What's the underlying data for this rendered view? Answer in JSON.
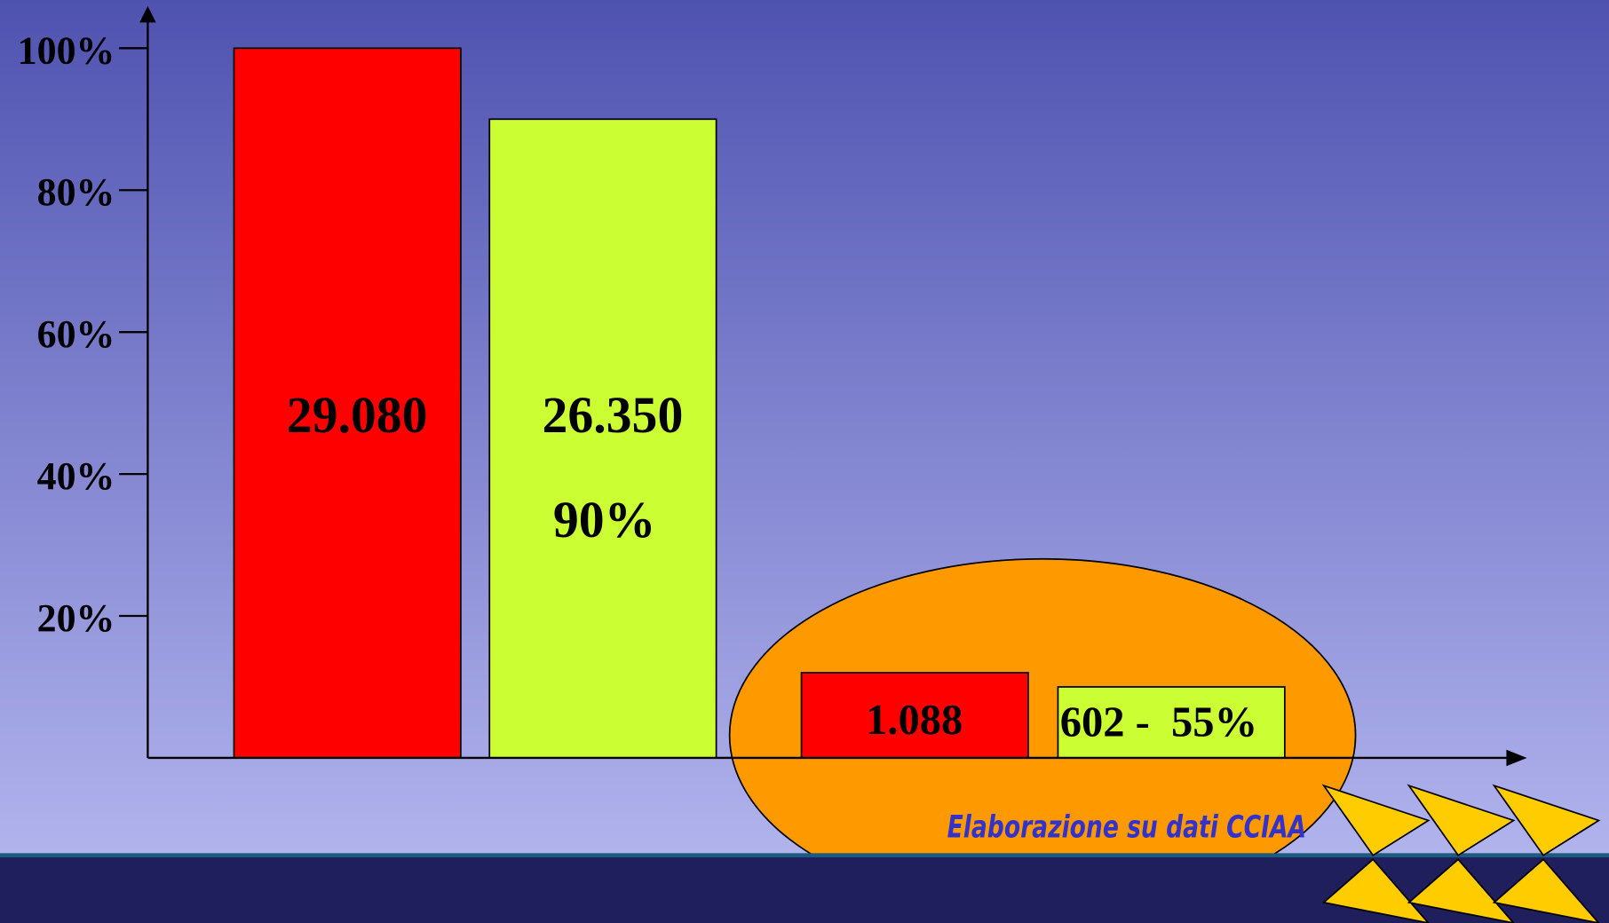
{
  "chart_data": {
    "type": "bar",
    "categories": [
      null,
      null,
      null,
      null
    ],
    "values": [
      100,
      90,
      12,
      10
    ],
    "colors": [
      "#ff0000",
      "#ccff33",
      "#ff0000",
      "#ccff33"
    ],
    "bar_labels": [
      [
        "29.080"
      ],
      [
        "26.350",
        "90%"
      ],
      [
        "1.088"
      ],
      [
        "602 -  55%"
      ]
    ],
    "ylim": [
      0,
      100
    ],
    "yticks": [
      {
        "value": 20,
        "label": "20%"
      },
      {
        "value": 40,
        "label": "40%"
      },
      {
        "value": 60,
        "label": "60%"
      },
      {
        "value": 80,
        "label": "80%"
      },
      {
        "value": 100,
        "label": "100%"
      }
    ],
    "source": "Elaborazione su dati CCIAA"
  }
}
